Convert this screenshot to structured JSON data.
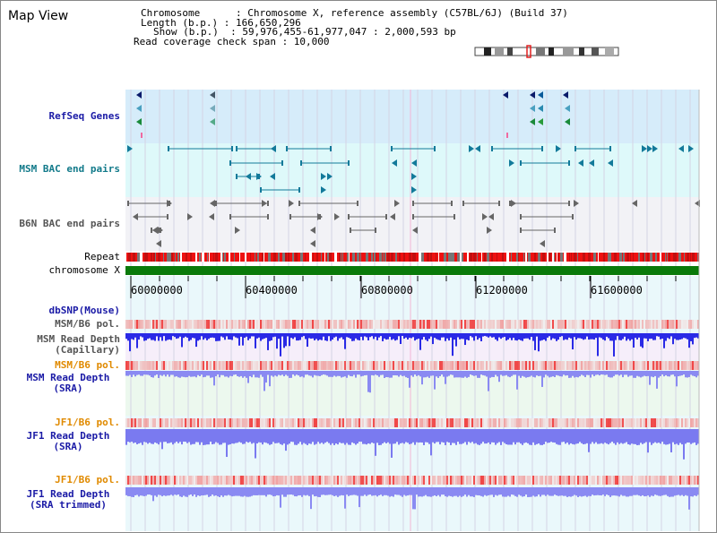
{
  "title": "Map View",
  "info": {
    "line1": "Chromosome      : Chromosome X, reference assembly (C57BL/6J) (Build 37)",
    "line2": "Length (b.p.) : 166,650,296",
    "line3": "Show (b.p.)  : 59,976,455-61,977,047 : 2,000,593 bp",
    "line4": "Read coverage check span : 10,000"
  },
  "tracks": {
    "refseq": "RefSeq Genes",
    "msm_bac": "MSM BAC end pairs",
    "b6n_bac": "B6N BAC end pairs",
    "repeat": "Repeat",
    "chromosome": "chromosome X",
    "dbsnp": "dbSNP(Mouse)",
    "msm_b6_pol": "MSM/B6 pol.",
    "msm_depth_cap_1": "MSM Read Depth",
    "msm_depth_cap_2": "(Capillary)",
    "msm_b6_pol2": "MSM/B6 pol.",
    "msm_depth_sra_1": "MSM Read Depth",
    "msm_depth_sra_2": "(SRA)",
    "jf1_b6_pol": "JF1/B6 pol.",
    "jf1_depth_sra_1": "JF1 Read Depth",
    "jf1_depth_sra_2": "(SRA)",
    "jf1_b6_pol2": "JF1/B6 pol.",
    "jf1_depth_trim_1": "JF1 Read Depth",
    "jf1_depth_trim_2": "(SRA trimmed)"
  },
  "axis_ticks": [
    "60000000",
    "60400000",
    "60800000",
    "61200000",
    "61600000"
  ],
  "colors": {
    "refseq_bg": "#d6ecfa",
    "msm_bg": "#def9fa",
    "b6n_bg": "#f2f2f6",
    "chrom_green": "#0a7a0a",
    "repeat_red": "#ee1111",
    "depth_blue": "#2a2ae6",
    "depth_light": "#7a7af0"
  }
}
